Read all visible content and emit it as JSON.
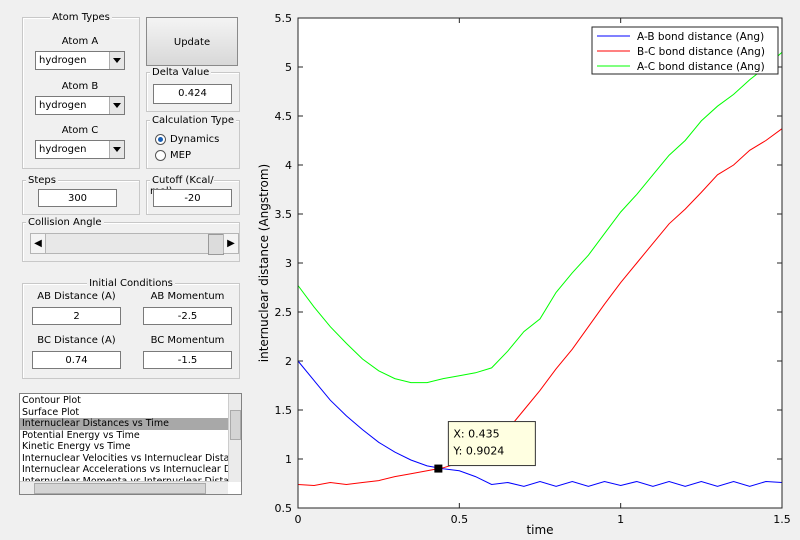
{
  "atom_types": {
    "title": "Atom Types",
    "atoms": [
      {
        "label": "Atom A",
        "value": "hydrogen"
      },
      {
        "label": "Atom B",
        "value": "hydrogen"
      },
      {
        "label": "Atom C",
        "value": "hydrogen"
      }
    ]
  },
  "update_button": "Update",
  "delta_value": {
    "label": "Delta Value",
    "value": "0.424"
  },
  "calculation_type": {
    "title": "Calculation Type",
    "options": [
      "Dynamics",
      "MEP"
    ],
    "selected": 0
  },
  "steps": {
    "label": "Steps",
    "value": "300"
  },
  "cutoff": {
    "label": "Cutoff (Kcal/ mol)",
    "value": "-20"
  },
  "collision_angle": {
    "label": "Collision Angle"
  },
  "initial_conditions": {
    "title": "Initial Conditions",
    "fields": [
      {
        "label": "AB Distance (A)",
        "value": "2"
      },
      {
        "label": "AB Momentum",
        "value": "-2.5"
      },
      {
        "label": "BC Distance (A)",
        "value": "0.74"
      },
      {
        "label": "BC Momentum",
        "value": "-1.5"
      }
    ]
  },
  "plot_list": {
    "items": [
      "Contour Plot",
      "Surface Plot",
      "Internuclear Distances vs Time",
      "Potential Energy vs Time",
      "Kinetic Energy vs Time",
      "Internuclear Velocities vs Internuclear Distance",
      "Internuclear Accelerations vs Internuclear Distance",
      "Internuclear Momenta vs Internuclear Distance"
    ],
    "selected": 2
  },
  "chart_data": {
    "type": "line",
    "x_label": "time",
    "y_label": "internuclear distance (Angstrom)",
    "x": [
      0,
      0.05,
      0.1,
      0.15,
      0.2,
      0.25,
      0.3,
      0.35,
      0.4,
      0.45,
      0.5,
      0.55,
      0.6,
      0.65,
      0.7,
      0.75,
      0.8,
      0.85,
      0.9,
      0.95,
      1.0,
      1.05,
      1.1,
      1.15,
      1.2,
      1.25,
      1.3,
      1.35,
      1.4,
      1.45,
      1.5
    ],
    "series": [
      {
        "name": "A-B bond distance (Ang)",
        "color": "#0000ff",
        "values": [
          2.0,
          1.8,
          1.6,
          1.44,
          1.3,
          1.17,
          1.07,
          0.99,
          0.93,
          0.9,
          0.88,
          0.82,
          0.74,
          0.76,
          0.72,
          0.77,
          0.72,
          0.77,
          0.72,
          0.77,
          0.73,
          0.77,
          0.72,
          0.77,
          0.72,
          0.77,
          0.72,
          0.77,
          0.72,
          0.77,
          0.76
        ]
      },
      {
        "name": "B-C bond distance (Ang)",
        "color": "#ff0000",
        "values": [
          0.74,
          0.73,
          0.76,
          0.74,
          0.76,
          0.78,
          0.82,
          0.85,
          0.88,
          0.91,
          0.96,
          1.04,
          1.16,
          1.3,
          1.5,
          1.7,
          1.92,
          2.12,
          2.35,
          2.58,
          2.8,
          3.0,
          3.2,
          3.4,
          3.55,
          3.72,
          3.9,
          4.0,
          4.15,
          4.25,
          4.37
        ]
      },
      {
        "name": "A-C bond distance (Ang)",
        "color": "#00ff00",
        "values": [
          2.77,
          2.55,
          2.35,
          2.18,
          2.02,
          1.9,
          1.82,
          1.78,
          1.78,
          1.82,
          1.85,
          1.88,
          1.93,
          2.1,
          2.3,
          2.43,
          2.7,
          2.9,
          3.08,
          3.3,
          3.52,
          3.7,
          3.9,
          4.1,
          4.25,
          4.45,
          4.6,
          4.72,
          4.87,
          5.0,
          5.15
        ]
      }
    ],
    "xlim": [
      0,
      1.5
    ],
    "xticks": [
      0,
      0.5,
      1,
      1.5
    ],
    "ylim": [
      0.5,
      5.5
    ],
    "yticks": [
      0.5,
      1,
      1.5,
      2,
      2.5,
      3,
      3.5,
      4,
      4.5,
      5,
      5.5
    ],
    "grid": false,
    "legend": "northeast",
    "datatip": {
      "x": 0.435,
      "y": 0.9024,
      "x_label": "X: 0.435",
      "y_label": "Y: 0.9024"
    }
  }
}
